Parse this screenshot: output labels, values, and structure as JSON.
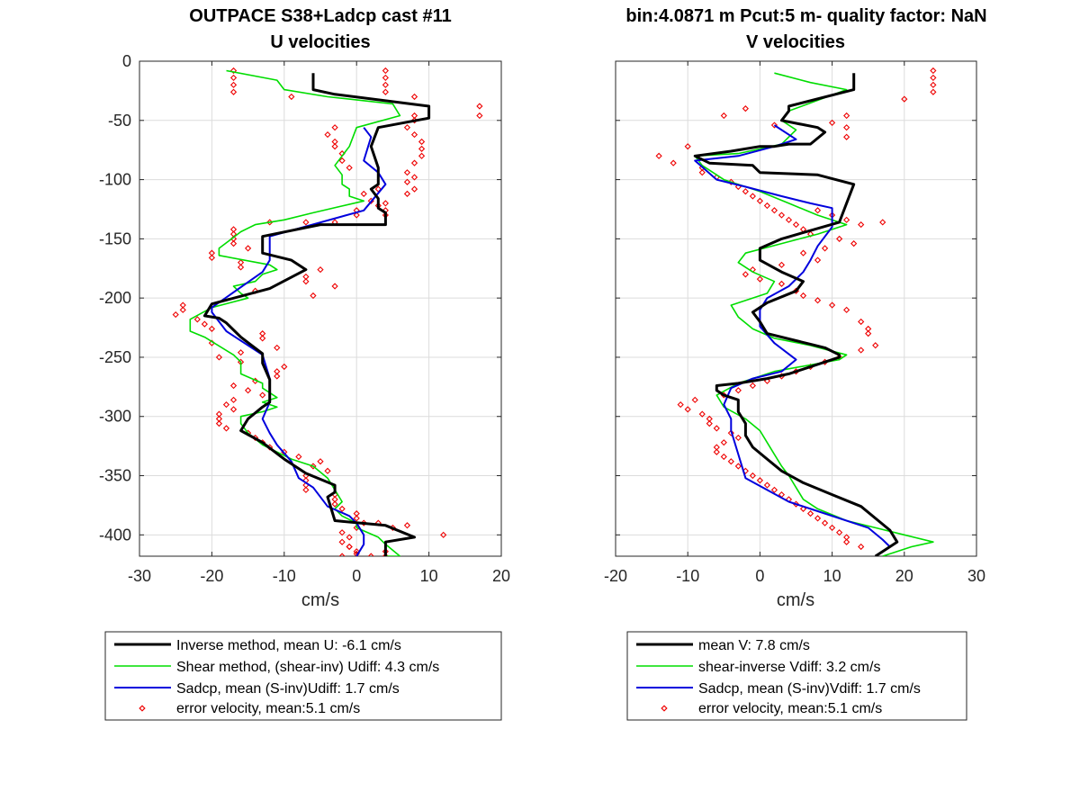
{
  "chart_data": [
    {
      "type": "line",
      "title_line1": "OUTPACE S38+Ladcp cast #11",
      "title_line2": "U velocities",
      "xlabel": "cm/s",
      "ylabel": "",
      "xlim": [
        -30,
        20
      ],
      "ylim": [
        -418,
        0
      ],
      "xticks": [
        -30,
        -20,
        -10,
        0,
        10,
        20
      ],
      "yticks": [
        0,
        -50,
        -100,
        -150,
        -200,
        -250,
        -300,
        -350,
        -400
      ],
      "grid": true,
      "legend_position": "below",
      "series": [
        {
          "name": "Inverse method, mean U:  -6.1 cm/s",
          "color": "#000000",
          "width": 3,
          "x": [
            -6,
            -6,
            -3,
            10,
            10,
            3,
            2,
            3,
            3,
            2,
            3,
            3,
            4,
            4,
            4,
            -5,
            -13,
            -13,
            -9,
            -7,
            -12,
            -20,
            -21,
            -19,
            -18,
            -16,
            -13,
            -13,
            -12,
            -12,
            -12,
            -13,
            -15,
            -16,
            -13,
            -10,
            -7,
            -3,
            -3,
            -4,
            -3,
            4,
            8,
            4,
            4
          ],
          "y": [
            -10,
            -24,
            -28,
            -38,
            -48,
            -56,
            -72,
            -90,
            -104,
            -108,
            -116,
            -124,
            -128,
            -134,
            -138,
            -138,
            -148,
            -162,
            -168,
            -176,
            -192,
            -205,
            -215,
            -217,
            -221,
            -233,
            -247,
            -255,
            -269,
            -279,
            -288,
            -292,
            -302,
            -312,
            -322,
            -336,
            -348,
            -358,
            -364,
            -368,
            -388,
            -392,
            -402,
            -406,
            -418
          ]
        },
        {
          "name": "Shear method, (shear-inv)  Udiff:  4.3 cm/s",
          "color": "#00dd00",
          "width": 1.6,
          "x": [
            -18,
            -11,
            -10,
            -4,
            5,
            6,
            0,
            -1,
            -2,
            -3,
            -2,
            -2,
            -1,
            -1,
            1,
            -6,
            -10,
            -14,
            -16,
            -19,
            -19,
            -12,
            -11,
            -13,
            -14,
            -17,
            -16,
            -15,
            -20,
            -23,
            -23,
            -21,
            -17,
            -16,
            -16,
            -13,
            -13,
            -11,
            -13,
            -11,
            -13,
            -16,
            -16,
            -15,
            -13,
            -9,
            -6,
            -4,
            -3,
            -2,
            -3,
            -2,
            0,
            0,
            3,
            4,
            6,
            5,
            4,
            4
          ],
          "y": [
            -8,
            -16,
            -24,
            -30,
            -36,
            -46,
            -56,
            -72,
            -80,
            -88,
            -96,
            -104,
            -108,
            -114,
            -118,
            -128,
            -134,
            -138,
            -144,
            -158,
            -164,
            -172,
            -176,
            -180,
            -186,
            -190,
            -196,
            -200,
            -208,
            -218,
            -228,
            -233,
            -248,
            -254,
            -264,
            -272,
            -276,
            -284,
            -288,
            -292,
            -296,
            -300,
            -306,
            -314,
            -324,
            -336,
            -342,
            -352,
            -362,
            -372,
            -378,
            -384,
            -390,
            -394,
            -402,
            -408,
            -418,
            -418,
            -418,
            -418
          ]
        },
        {
          "name": "Sadcp, mean (S-inv)Udiff: 1.7 cm/s",
          "color": "#0000dd",
          "width": 2,
          "x": [
            1,
            2,
            1,
            3,
            4,
            1,
            -12,
            -12,
            -12,
            -13,
            -20,
            -20,
            -18,
            -13,
            -12,
            -12,
            -13,
            -12,
            -11,
            -9,
            -8,
            -6,
            -4,
            -1,
            0,
            1,
            1,
            0
          ],
          "y": [
            -56,
            -64,
            -84,
            -94,
            -104,
            -126,
            -148,
            -158,
            -168,
            -178,
            -208,
            -212,
            -228,
            -248,
            -268,
            -288,
            -302,
            -314,
            -324,
            -338,
            -352,
            -360,
            -376,
            -384,
            -390,
            -400,
            -408,
            -418
          ]
        }
      ],
      "error_velocity": {
        "name": "error velocity, mean:5.1 cm/s",
        "color": "#ee0000",
        "x": [
          -17,
          -17,
          -17,
          -17,
          4,
          4,
          4,
          4,
          -9,
          8,
          17,
          17,
          8,
          8,
          -3,
          -4,
          -3,
          -3,
          -2,
          -2,
          7,
          8,
          9,
          9,
          9,
          8,
          -1,
          7,
          8,
          7,
          8,
          7,
          3,
          1,
          2,
          3,
          4,
          4,
          0,
          0,
          4,
          -3,
          -12,
          -7,
          -17,
          -17,
          -17,
          -17,
          -15,
          -20,
          -20,
          -16,
          -16,
          -5,
          -7,
          -7,
          -3,
          -14,
          -6,
          -24,
          -24,
          -25,
          -22,
          -21,
          -20,
          -13,
          -13,
          -20,
          -11,
          -16,
          -19,
          -16,
          -10,
          -11,
          -11,
          -14,
          -17,
          -15,
          -13,
          -17,
          -18,
          -17,
          -19,
          -19,
          -19,
          -18,
          -15,
          -14,
          -13,
          -12,
          -10,
          -8,
          -5,
          -6,
          -4,
          -7,
          -7,
          -7,
          -7,
          -3,
          -3,
          -3,
          -2,
          0,
          0,
          1,
          0,
          -2,
          -1,
          -2,
          -1,
          12,
          7,
          3,
          5,
          -1,
          0,
          0,
          4,
          2,
          4,
          -2
        ],
        "y": [
          -8,
          -14,
          -20,
          -26,
          -8,
          -14,
          -20,
          -26,
          -30,
          -30,
          -38,
          -46,
          -46,
          -50,
          -56,
          -62,
          -68,
          -72,
          -78,
          -84,
          -56,
          -62,
          -68,
          -74,
          -80,
          -86,
          -90,
          -94,
          -98,
          -102,
          -108,
          -112,
          -108,
          -112,
          -118,
          -122,
          -126,
          -120,
          -126,
          -130,
          -130,
          -136,
          -136,
          -136,
          -142,
          -146,
          -150,
          -154,
          -158,
          -162,
          -166,
          -170,
          -174,
          -176,
          -182,
          -186,
          -190,
          -194,
          -198,
          -206,
          -210,
          -214,
          -218,
          -222,
          -226,
          -230,
          -234,
          -238,
          -242,
          -246,
          -250,
          -254,
          -258,
          -262,
          -266,
          -270,
          -274,
          -278,
          -282,
          -286,
          -290,
          -294,
          -298,
          -302,
          -306,
          -310,
          -314,
          -318,
          -322,
          -326,
          -330,
          -334,
          -338,
          -342,
          -346,
          -350,
          -354,
          -358,
          -362,
          -366,
          -370,
          -374,
          -378,
          -382,
          -386,
          -390,
          -394,
          -398,
          -402,
          -406,
          -410,
          -400,
          -392,
          -390,
          -394,
          -410,
          -414,
          -416,
          -414,
          -418,
          -418,
          -418
        ]
      }
    },
    {
      "type": "line",
      "title_line1": "bin:4.0871 m  Pcut:5 m- quality factor:  NaN",
      "title_line2": "V velocities",
      "xlabel": "cm/s",
      "ylabel": "",
      "xlim": [
        -20,
        30
      ],
      "ylim": [
        -418,
        0
      ],
      "xticks": [
        -20,
        -10,
        0,
        10,
        20,
        30
      ],
      "yticks": [
        0,
        -50,
        -100,
        -150,
        -200,
        -250,
        -300,
        -350,
        -400
      ],
      "grid": true,
      "legend_position": "below",
      "series": [
        {
          "name": "mean V:  7.8 cm/s",
          "color": "#000000",
          "width": 3,
          "x": [
            13,
            13,
            4,
            4,
            3,
            8,
            9,
            7,
            4,
            2,
            0,
            -4,
            -9,
            -7,
            -1,
            0,
            8,
            13,
            11,
            3,
            0,
            0,
            3,
            6,
            5,
            1,
            -1,
            0,
            1,
            5,
            9,
            11,
            11,
            4,
            1,
            -3,
            -6,
            -6,
            -5,
            -3,
            -3,
            -2,
            -2,
            -1,
            1,
            3,
            6,
            10,
            14,
            16,
            18,
            19,
            16
          ],
          "y": [
            -10,
            -24,
            -38,
            -42,
            -50,
            -56,
            -60,
            -70,
            -70,
            -72,
            -72,
            -76,
            -80,
            -86,
            -88,
            -94,
            -96,
            -104,
            -136,
            -150,
            -158,
            -168,
            -178,
            -186,
            -194,
            -204,
            -212,
            -220,
            -230,
            -236,
            -242,
            -248,
            -250,
            -264,
            -268,
            -272,
            -274,
            -278,
            -282,
            -286,
            -296,
            -306,
            -316,
            -326,
            -336,
            -346,
            -356,
            -366,
            -376,
            -386,
            -396,
            -406,
            -418
          ]
        },
        {
          "name": "shear-inverse Vdiff:  3.2 cm/s",
          "color": "#00dd00",
          "width": 1.6,
          "x": [
            2,
            7,
            12,
            4,
            3,
            5,
            4,
            3,
            0,
            -3,
            -9,
            -8,
            -5,
            0,
            4,
            8,
            12,
            8,
            3,
            -2,
            -3,
            -1,
            2,
            1,
            -4,
            -3,
            -1,
            2,
            7,
            12,
            11,
            2,
            -3,
            -6,
            -5,
            -2,
            0,
            1,
            2,
            3,
            4,
            5,
            6,
            8,
            12,
            16,
            20,
            24,
            21,
            19,
            17
          ],
          "y": [
            -10,
            -18,
            -24,
            -42,
            -50,
            -58,
            -64,
            -70,
            -74,
            -78,
            -80,
            -88,
            -100,
            -110,
            -120,
            -130,
            -138,
            -146,
            -154,
            -162,
            -170,
            -178,
            -186,
            -196,
            -206,
            -216,
            -226,
            -234,
            -240,
            -248,
            -252,
            -262,
            -272,
            -282,
            -292,
            -302,
            -312,
            -322,
            -332,
            -342,
            -350,
            -360,
            -370,
            -378,
            -388,
            -394,
            -400,
            -406,
            -410,
            -414,
            -418
          ]
        },
        {
          "name": "Sadcp, mean (S-inv)Vdiff: 1.7 cm/s",
          "color": "#0000dd",
          "width": 2,
          "x": [
            2,
            5,
            2,
            -3,
            -9,
            -6,
            -2,
            3,
            7,
            10,
            10,
            8,
            7,
            6,
            4,
            1,
            0,
            0,
            2,
            5,
            3,
            -1,
            -4,
            -5,
            -4,
            -4,
            -2,
            4,
            8,
            15,
            17,
            18
          ],
          "y": [
            -54,
            -66,
            -72,
            -80,
            -84,
            -100,
            -106,
            -114,
            -120,
            -124,
            -140,
            -156,
            -168,
            -178,
            -190,
            -200,
            -210,
            -224,
            -238,
            -252,
            -262,
            -268,
            -276,
            -290,
            -302,
            -312,
            -352,
            -372,
            -380,
            -394,
            -404,
            -410
          ]
        }
      ],
      "error_velocity": {
        "name": "error velocity, mean:5.1 cm/s",
        "color": "#ee0000",
        "x": [
          24,
          24,
          24,
          24,
          20,
          12,
          10,
          12,
          12,
          2,
          -2,
          -5,
          -10,
          -14,
          -12,
          -8,
          -8,
          -6,
          -4,
          -3,
          -2,
          -1,
          0,
          1,
          2,
          3,
          4,
          5,
          6,
          7,
          8,
          10,
          12,
          14,
          17,
          11,
          13,
          9,
          6,
          8,
          3,
          -1,
          -2,
          0,
          3,
          5,
          6,
          8,
          10,
          12,
          14,
          15,
          15,
          16,
          14,
          11,
          9,
          7,
          5,
          3,
          1,
          -1,
          -3,
          -5,
          -9,
          -11,
          -10,
          -8,
          -7,
          -7,
          -6,
          -4,
          -3,
          -5,
          -6,
          -6,
          -5,
          -4,
          -3,
          -2,
          -1,
          0,
          1,
          2,
          3,
          4,
          5,
          6,
          7,
          8,
          9,
          10,
          11,
          12,
          12,
          14
        ],
        "y": [
          -8,
          -14,
          -20,
          -26,
          -32,
          -46,
          -52,
          -56,
          -64,
          -54,
          -40,
          -46,
          -72,
          -80,
          -86,
          -90,
          -94,
          -98,
          -102,
          -106,
          -110,
          -114,
          -118,
          -122,
          -126,
          -130,
          -134,
          -138,
          -142,
          -146,
          -126,
          -130,
          -134,
          -138,
          -136,
          -150,
          -154,
          -158,
          -162,
          -168,
          -172,
          -176,
          -180,
          -184,
          -188,
          -194,
          -198,
          -202,
          -206,
          -210,
          -220,
          -226,
          -230,
          -240,
          -244,
          -250,
          -254,
          -258,
          -262,
          -266,
          -270,
          -274,
          -278,
          -282,
          -286,
          -290,
          -294,
          -298,
          -302,
          -306,
          -310,
          -314,
          -318,
          -322,
          -326,
          -330,
          -334,
          -338,
          -342,
          -346,
          -350,
          -354,
          -358,
          -362,
          -366,
          -370,
          -374,
          -378,
          -382,
          -386,
          -390,
          -394,
          -398,
          -402,
          -406,
          -410
        ]
      }
    }
  ]
}
